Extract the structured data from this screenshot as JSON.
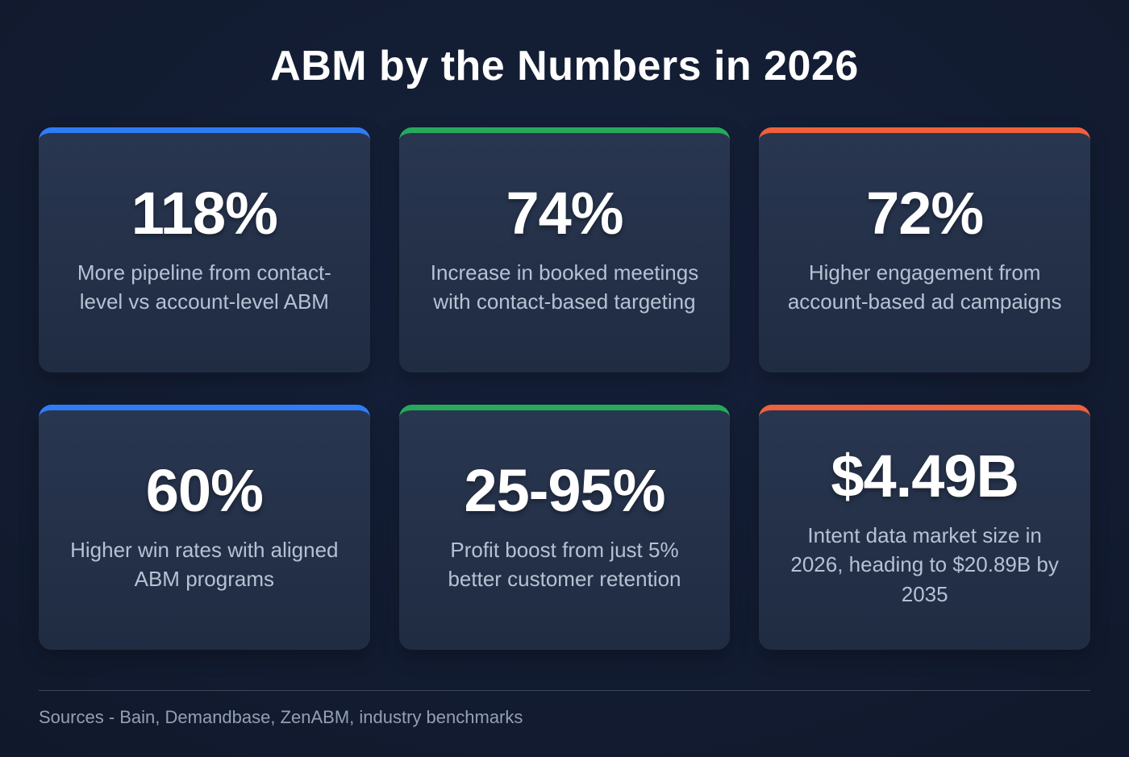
{
  "page": {
    "title": "ABM by the Numbers in 2026",
    "sources": "Sources - Bain, Demandbase, ZenABM, industry benchmarks"
  },
  "colors": {
    "blue": "#2e7cf6",
    "green": "#27a95c",
    "orange": "#f0603c",
    "background": "#111a2d",
    "card_background": "#253349",
    "number_text": "#ffffff",
    "description_text": "#b7c1d4",
    "sources_text": "#93a0b4"
  },
  "cards": [
    {
      "value": "118%",
      "description": "More pipeline from contact-level vs account-level ABM",
      "accent": "blue"
    },
    {
      "value": "74%",
      "description": "Increase in booked meetings with contact-based targeting",
      "accent": "green"
    },
    {
      "value": "72%",
      "description": "Higher engagement from account-based ad campaigns",
      "accent": "orange"
    },
    {
      "value": "60%",
      "description": "Higher win rates with aligned ABM programs",
      "accent": "blue"
    },
    {
      "value": "25-95%",
      "description": "Profit boost from just 5% better customer retention",
      "accent": "green"
    },
    {
      "value": "$4.49B",
      "description": "Intent data market size in 2026, heading to $20.89B by 2035",
      "accent": "orange"
    }
  ],
  "chart_data": {
    "type": "table",
    "title": "ABM by the Numbers in 2026",
    "categories": [
      "More pipeline from contact-level vs account-level ABM",
      "Increase in booked meetings with contact-based targeting",
      "Higher engagement from account-based ad campaigns",
      "Higher win rates with aligned ABM programs",
      "Profit boost from just 5% better customer retention",
      "Intent data market size in 2026, heading to $20.89B by 2035"
    ],
    "values": [
      "118%",
      "74%",
      "72%",
      "60%",
      "25-95%",
      "$4.49B"
    ],
    "numeric_values": [
      118,
      74,
      72,
      60,
      [
        25,
        95
      ],
      4.49
    ],
    "units": [
      "%",
      "%",
      "%",
      "%",
      "%",
      "billion USD"
    ],
    "source": "Sources - Bain, Demandbase, ZenABM, industry benchmarks"
  }
}
